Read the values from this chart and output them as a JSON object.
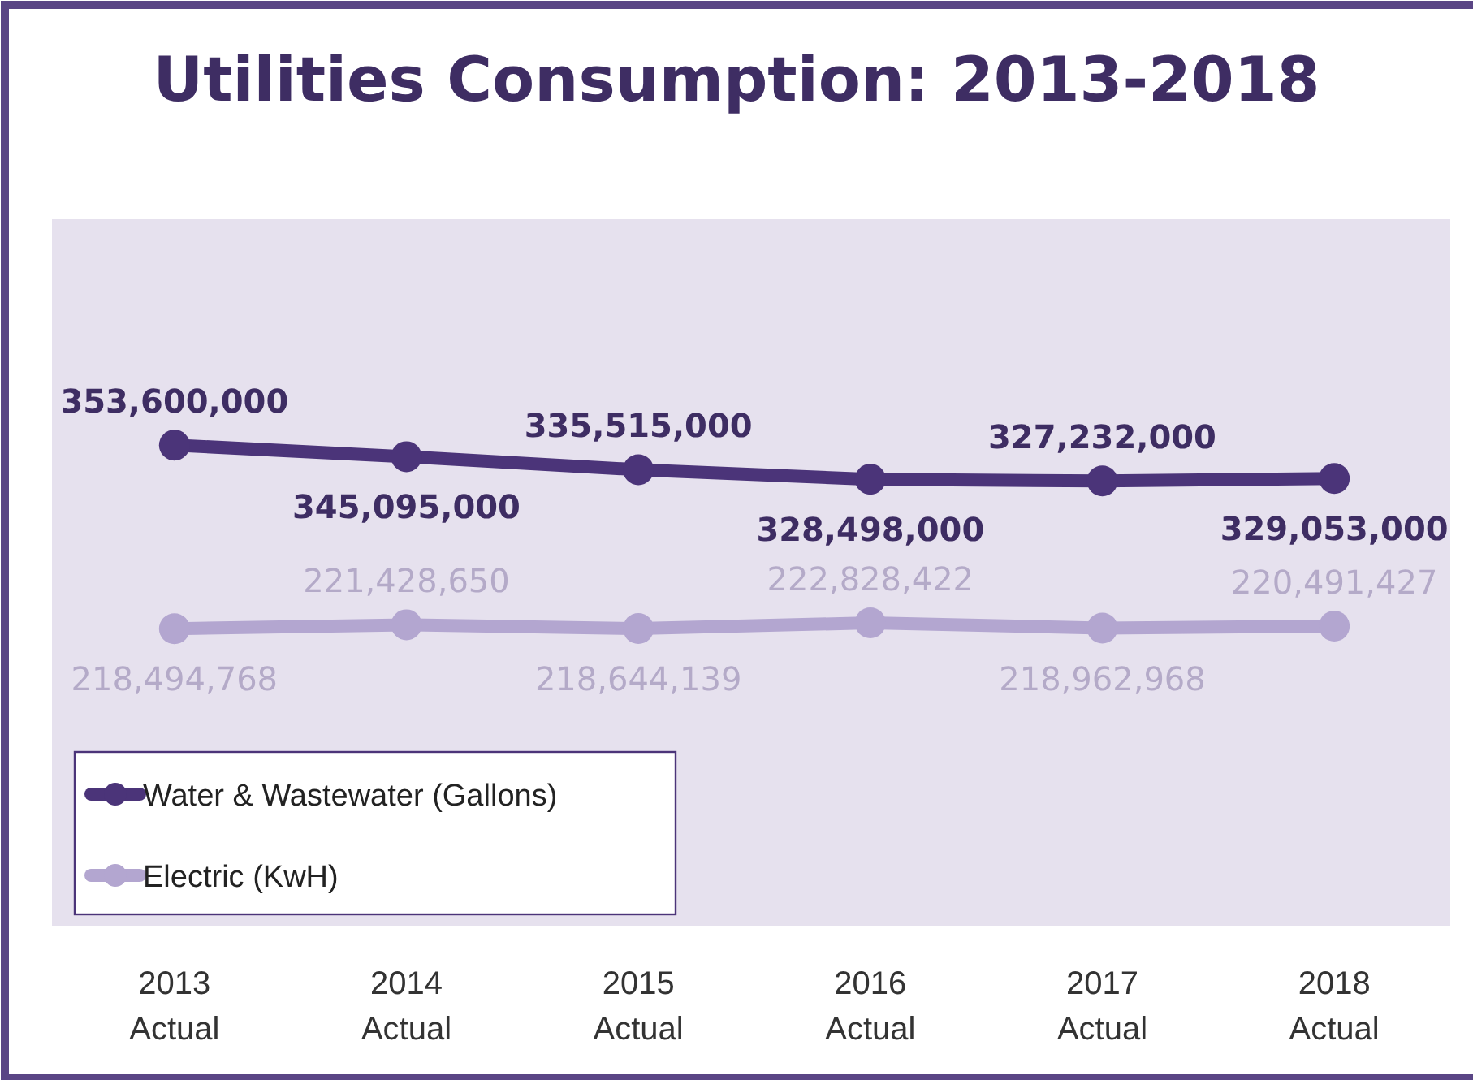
{
  "chart_data": {
    "type": "line",
    "title": "Utilities Consumption: 2013-2018",
    "categories": [
      "2013 Actual",
      "2014 Actual",
      "2015 Actual",
      "2016 Actual",
      "2017 Actual",
      "2018 Actual"
    ],
    "series": [
      {
        "name": "Water & Wastewater (Gallons)",
        "color": "#4b3479",
        "values": [
          353600000,
          345095000,
          335515000,
          328498000,
          327232000,
          329053000
        ],
        "value_labels": [
          "353,600,000",
          "345,095,000",
          "335,515,000",
          "328,498,000",
          "327,232,000",
          "329,053,000"
        ]
      },
      {
        "name": "Electric (KwH)",
        "color": "#b3a6d0",
        "values": [
          218494768,
          221428650,
          218644139,
          222828422,
          218962968,
          220491427
        ],
        "value_labels": [
          "218,494,768",
          "221,428,650",
          "218,644,139",
          "222,828,422",
          "218,962,968",
          "220,491,427"
        ]
      }
    ],
    "tick_labels": "x",
    "legend": "bottom left",
    "marker": "circle",
    "line_style": "solid"
  }
}
